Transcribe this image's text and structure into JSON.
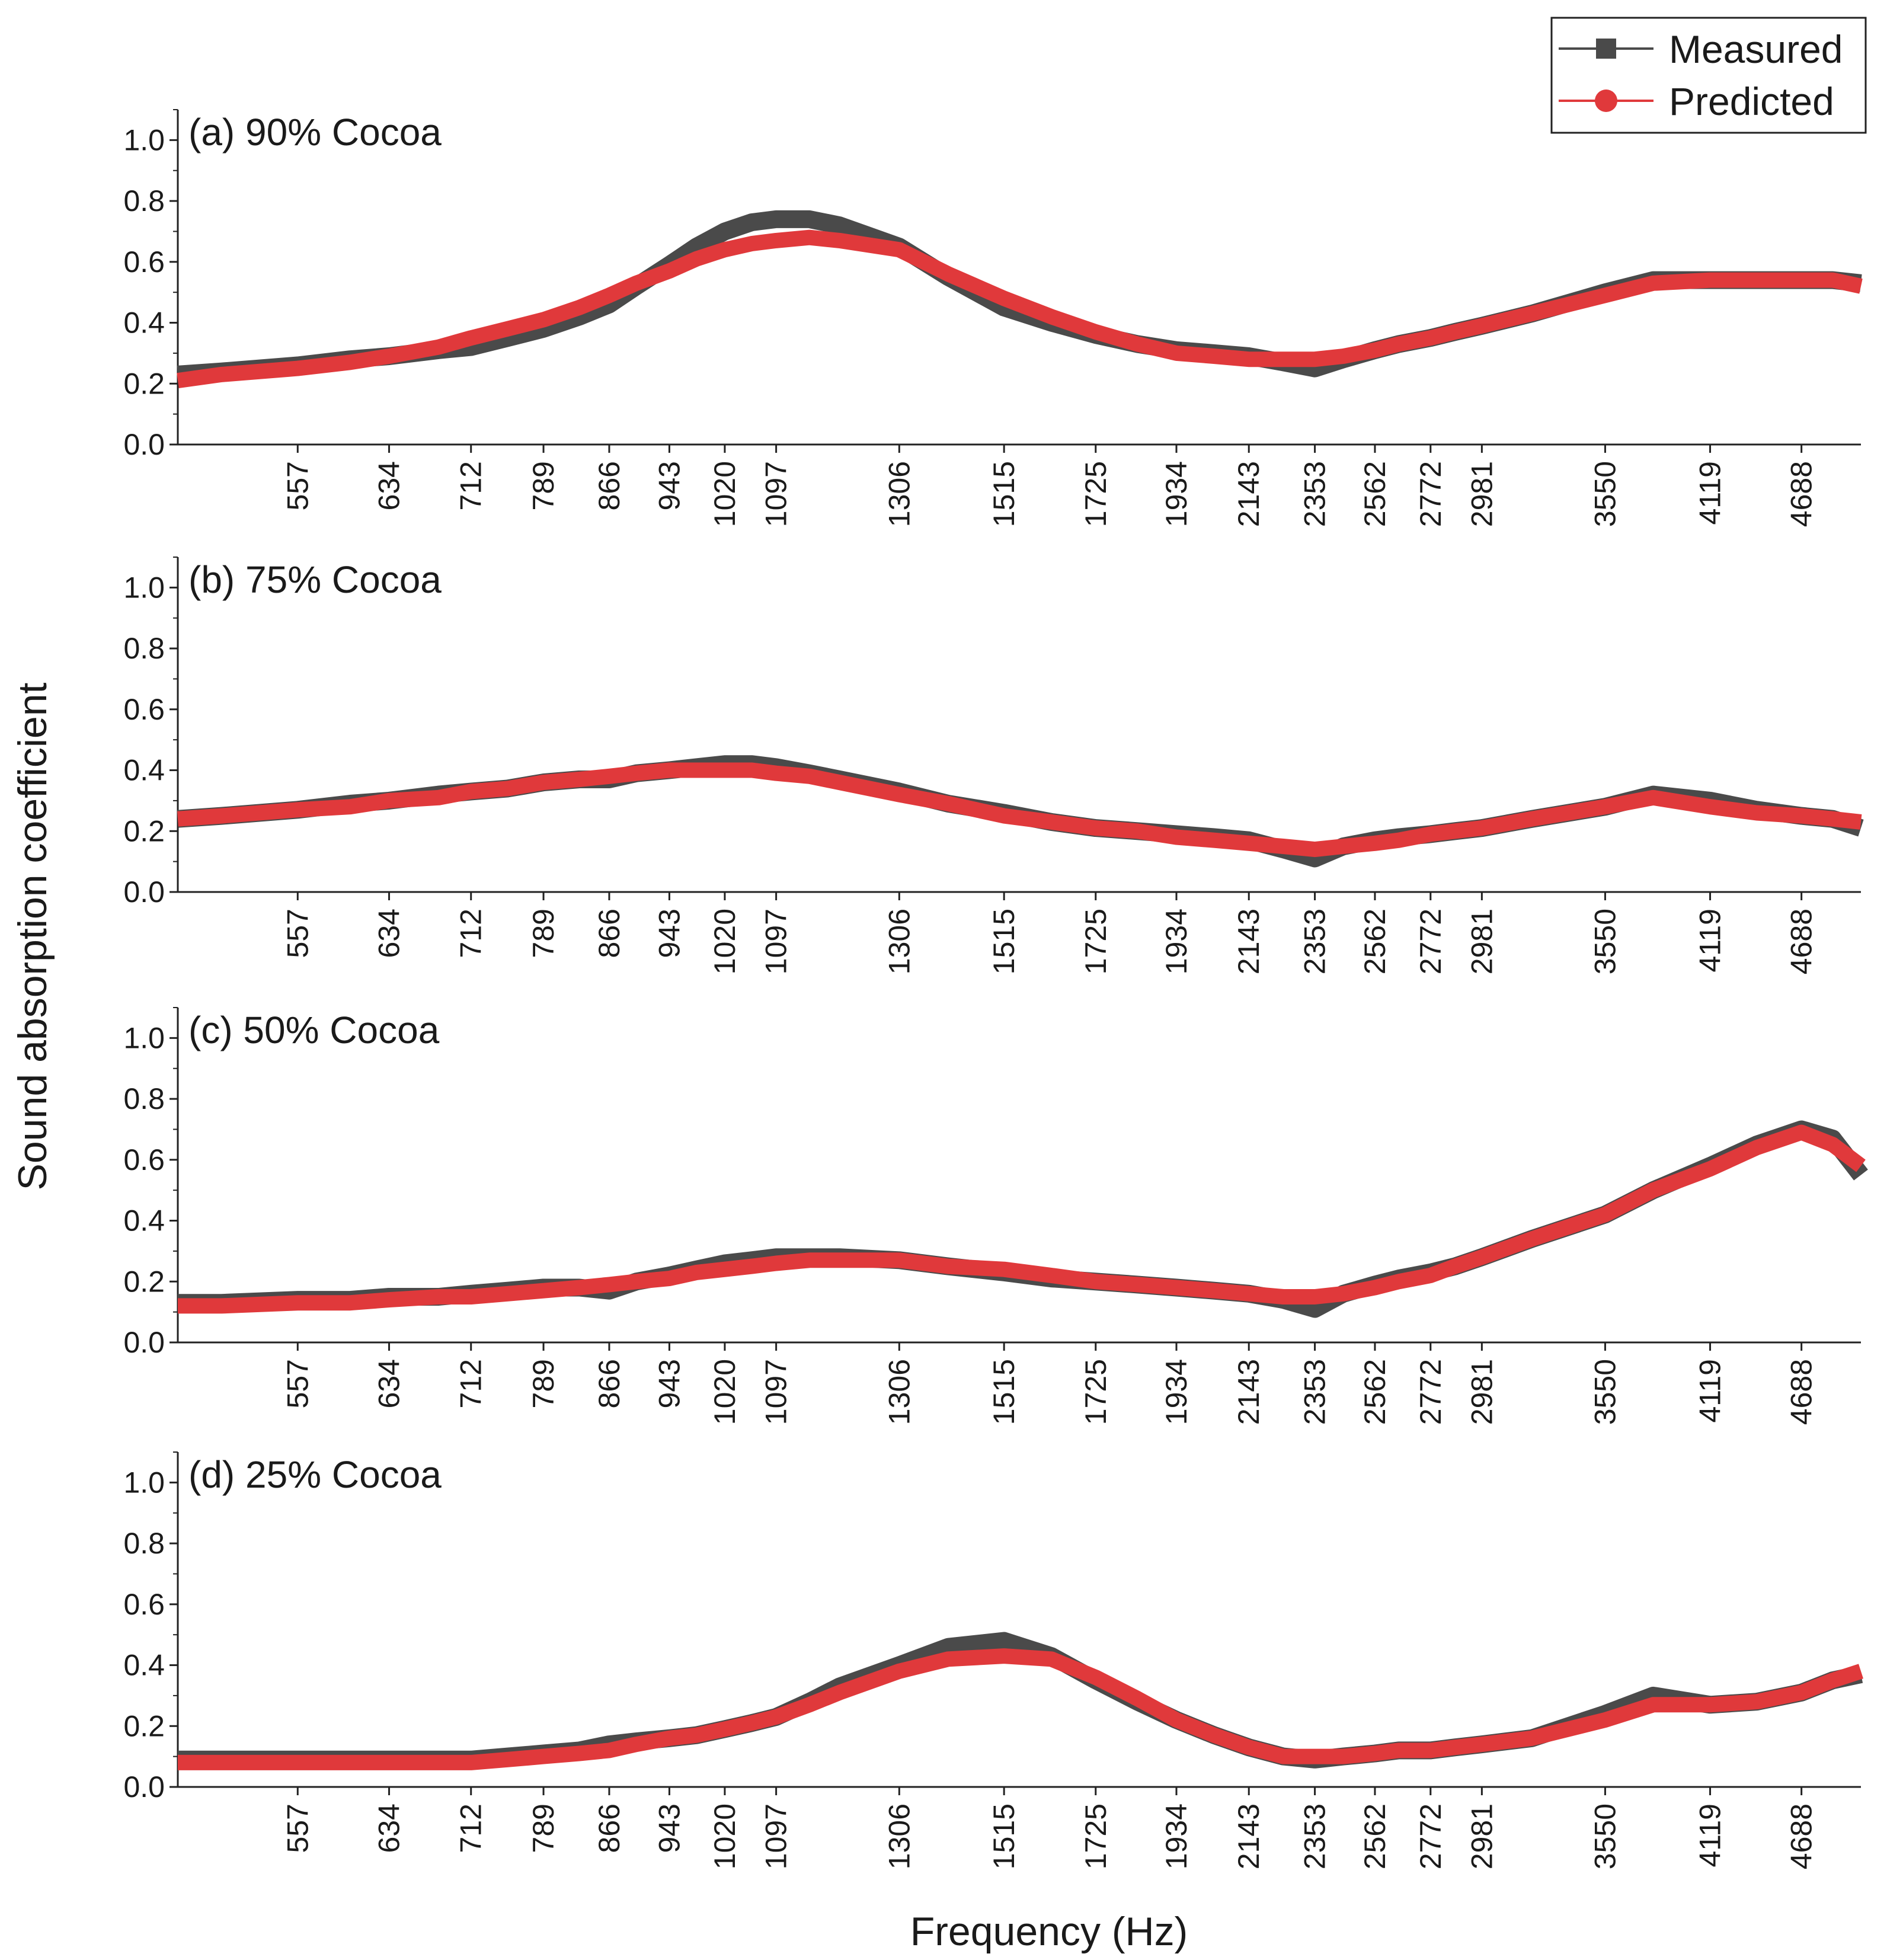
{
  "chart_data": {
    "type": "line",
    "ylabel": "Sound absorption coefficient",
    "xlabel": "Frequency (Hz)",
    "xscale": "log",
    "xlim": [
      470,
      5100
    ],
    "ylim": [
      0,
      1.1
    ],
    "x_ticks": [
      557,
      634,
      712,
      789,
      866,
      943,
      1020,
      1097,
      1306,
      1515,
      1725,
      1934,
      2143,
      2353,
      2562,
      2772,
      2981,
      3550,
      4119,
      4688
    ],
    "y_ticks": [
      "0.0",
      "0.2",
      "0.4",
      "0.6",
      "0.8",
      "1.0"
    ],
    "legend": {
      "position": "top-right",
      "entries": [
        {
          "name": "Measured",
          "color": "#4a4a4a",
          "marker": "square"
        },
        {
          "name": "Predicted",
          "color": "#e0393b",
          "marker": "circle"
        }
      ]
    },
    "x": [
      470,
      500,
      557,
      600,
      634,
      680,
      712,
      750,
      789,
      830,
      866,
      900,
      943,
      980,
      1020,
      1060,
      1097,
      1150,
      1200,
      1306,
      1400,
      1515,
      1620,
      1725,
      1830,
      1934,
      2040,
      2143,
      2250,
      2353,
      2450,
      2562,
      2650,
      2772,
      2870,
      2981,
      3200,
      3550,
      3800,
      4119,
      4400,
      4688,
      4900,
      5100
    ],
    "panels": [
      {
        "label": "(a) 90% Cocoa",
        "series": [
          {
            "name": "Measured",
            "values": [
              0.23,
              0.24,
              0.26,
              0.28,
              0.29,
              0.31,
              0.32,
              0.35,
              0.38,
              0.42,
              0.46,
              0.52,
              0.59,
              0.65,
              0.7,
              0.73,
              0.74,
              0.74,
              0.72,
              0.65,
              0.55,
              0.45,
              0.4,
              0.36,
              0.33,
              0.31,
              0.3,
              0.29,
              0.27,
              0.25,
              0.28,
              0.31,
              0.33,
              0.35,
              0.37,
              0.39,
              0.43,
              0.5,
              0.54,
              0.54,
              0.54,
              0.54,
              0.54,
              0.53
            ]
          },
          {
            "name": "Predicted",
            "values": [
              0.21,
              0.23,
              0.25,
              0.27,
              0.29,
              0.32,
              0.35,
              0.38,
              0.41,
              0.45,
              0.49,
              0.53,
              0.57,
              0.61,
              0.64,
              0.66,
              0.67,
              0.68,
              0.67,
              0.64,
              0.56,
              0.48,
              0.42,
              0.37,
              0.33,
              0.3,
              0.29,
              0.28,
              0.28,
              0.28,
              0.29,
              0.31,
              0.33,
              0.35,
              0.37,
              0.39,
              0.43,
              0.49,
              0.53,
              0.54,
              0.54,
              0.54,
              0.54,
              0.52
            ]
          }
        ]
      },
      {
        "label": "(b) 75% Cocoa",
        "series": [
          {
            "name": "Measured",
            "values": [
              0.24,
              0.25,
              0.27,
              0.29,
              0.3,
              0.32,
              0.33,
              0.34,
              0.36,
              0.37,
              0.37,
              0.39,
              0.4,
              0.41,
              0.42,
              0.42,
              0.41,
              0.39,
              0.37,
              0.33,
              0.29,
              0.26,
              0.23,
              0.21,
              0.2,
              0.19,
              0.18,
              0.17,
              0.14,
              0.11,
              0.15,
              0.17,
              0.18,
              0.19,
              0.2,
              0.21,
              0.24,
              0.28,
              0.32,
              0.3,
              0.27,
              0.25,
              0.24,
              0.21
            ]
          },
          {
            "name": "Predicted",
            "values": [
              0.24,
              0.25,
              0.27,
              0.28,
              0.3,
              0.31,
              0.33,
              0.34,
              0.36,
              0.37,
              0.38,
              0.39,
              0.4,
              0.4,
              0.4,
              0.4,
              0.39,
              0.38,
              0.36,
              0.32,
              0.29,
              0.25,
              0.23,
              0.21,
              0.2,
              0.18,
              0.17,
              0.16,
              0.15,
              0.14,
              0.15,
              0.16,
              0.17,
              0.19,
              0.2,
              0.21,
              0.24,
              0.28,
              0.31,
              0.28,
              0.26,
              0.25,
              0.24,
              0.23
            ]
          }
        ]
      },
      {
        "label": "(c) 50% Cocoa",
        "series": [
          {
            "name": "Measured",
            "values": [
              0.13,
              0.13,
              0.14,
              0.14,
              0.15,
              0.15,
              0.16,
              0.17,
              0.18,
              0.18,
              0.17,
              0.2,
              0.22,
              0.24,
              0.26,
              0.27,
              0.28,
              0.28,
              0.28,
              0.27,
              0.25,
              0.23,
              0.21,
              0.2,
              0.19,
              0.18,
              0.17,
              0.16,
              0.14,
              0.11,
              0.16,
              0.19,
              0.21,
              0.23,
              0.25,
              0.28,
              0.34,
              0.42,
              0.5,
              0.58,
              0.65,
              0.7,
              0.67,
              0.55
            ]
          },
          {
            "name": "Predicted",
            "values": [
              0.12,
              0.12,
              0.13,
              0.13,
              0.14,
              0.15,
              0.15,
              0.16,
              0.17,
              0.18,
              0.19,
              0.2,
              0.21,
              0.23,
              0.24,
              0.25,
              0.26,
              0.27,
              0.27,
              0.27,
              0.25,
              0.24,
              0.22,
              0.2,
              0.19,
              0.18,
              0.17,
              0.16,
              0.15,
              0.15,
              0.16,
              0.18,
              0.2,
              0.22,
              0.25,
              0.28,
              0.34,
              0.42,
              0.5,
              0.57,
              0.64,
              0.69,
              0.65,
              0.58
            ]
          }
        ]
      },
      {
        "label": "(d) 25% Cocoa",
        "series": [
          {
            "name": "Measured",
            "values": [
              0.09,
              0.09,
              0.09,
              0.09,
              0.09,
              0.09,
              0.09,
              0.1,
              0.11,
              0.12,
              0.14,
              0.15,
              0.16,
              0.17,
              0.19,
              0.21,
              0.23,
              0.28,
              0.33,
              0.4,
              0.46,
              0.48,
              0.43,
              0.35,
              0.28,
              0.22,
              0.17,
              0.13,
              0.1,
              0.09,
              0.1,
              0.11,
              0.12,
              0.12,
              0.13,
              0.14,
              0.16,
              0.24,
              0.3,
              0.27,
              0.28,
              0.31,
              0.35,
              0.37
            ]
          },
          {
            "name": "Predicted",
            "values": [
              0.08,
              0.08,
              0.08,
              0.08,
              0.08,
              0.08,
              0.08,
              0.09,
              0.1,
              0.11,
              0.12,
              0.14,
              0.16,
              0.17,
              0.19,
              0.21,
              0.23,
              0.27,
              0.31,
              0.38,
              0.42,
              0.43,
              0.42,
              0.36,
              0.29,
              0.22,
              0.17,
              0.13,
              0.1,
              0.1,
              0.1,
              0.11,
              0.12,
              0.12,
              0.13,
              0.14,
              0.16,
              0.22,
              0.27,
              0.27,
              0.28,
              0.31,
              0.35,
              0.38
            ]
          }
        ]
      }
    ]
  }
}
